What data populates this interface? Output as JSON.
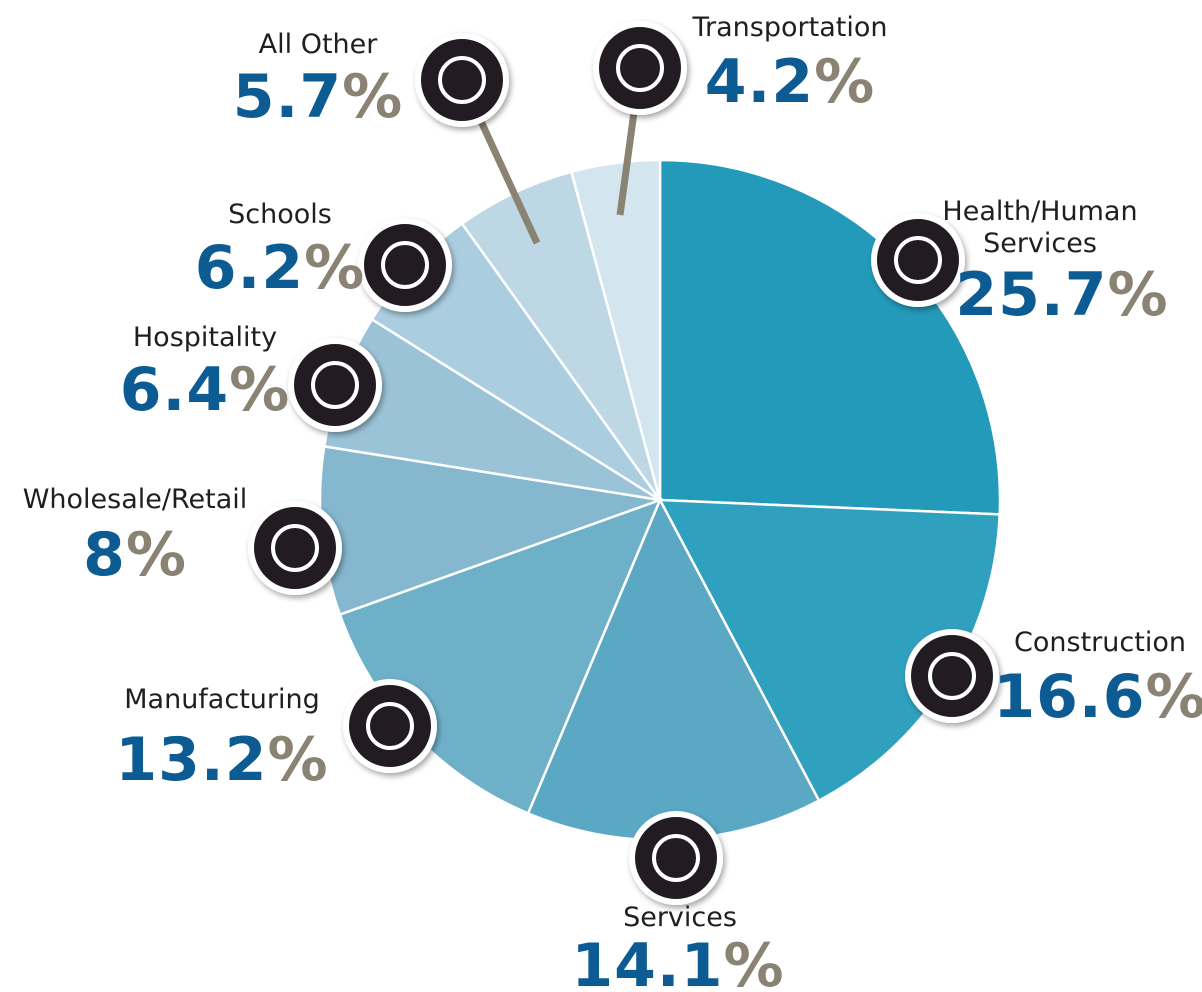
{
  "chart_data": {
    "type": "pie",
    "categories": [
      "Health/Human Services",
      "Construction",
      "Services",
      "Manufacturing",
      "Wholesale/Retail",
      "Hospitality",
      "Schools",
      "All Other",
      "Transportation"
    ],
    "values": [
      25.7,
      16.6,
      14.1,
      13.2,
      8,
      6.4,
      6.2,
      5.7,
      4.2
    ],
    "unit": "%",
    "colors": [
      "#239ab9",
      "#30a0bf",
      "#5aa8c4",
      "#6fb0c9",
      "#85b7cf",
      "#9bc3d7",
      "#aacde0",
      "#bdd7e5",
      "#d3e5ee"
    ]
  }
}
